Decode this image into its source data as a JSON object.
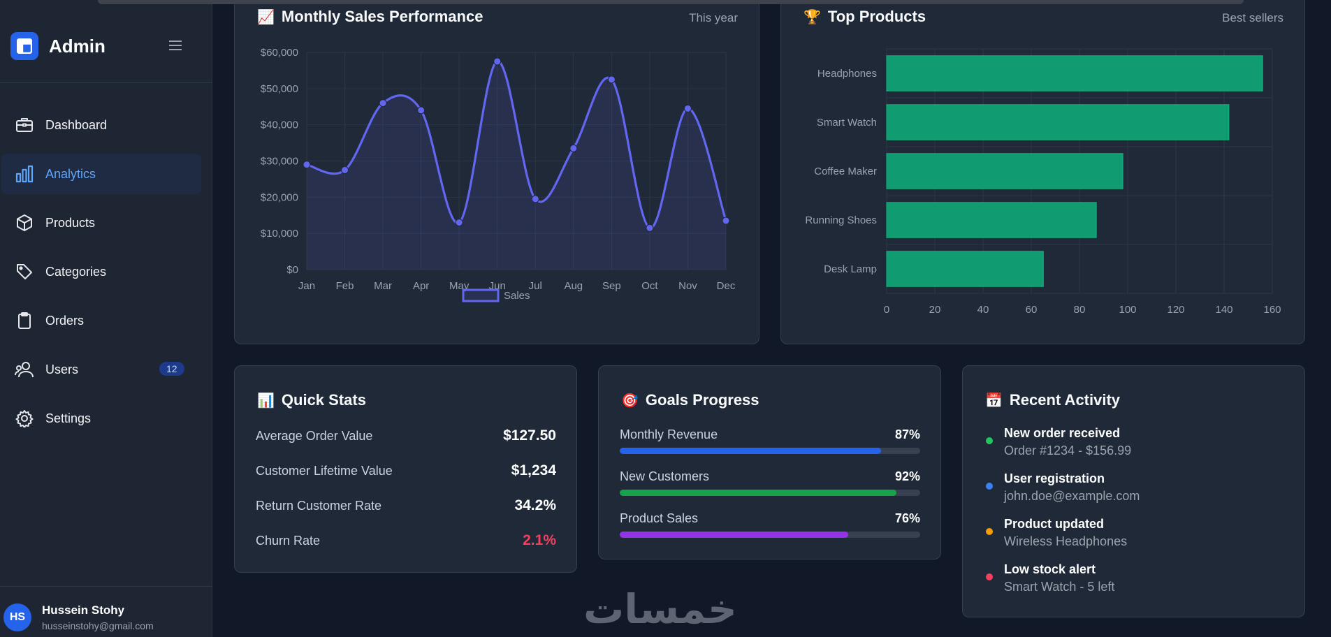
{
  "sidebar": {
    "brand": "Admin",
    "items": [
      {
        "label": "Dashboard",
        "icon": "briefcase-icon"
      },
      {
        "label": "Analytics",
        "icon": "bar-chart-icon",
        "active": true
      },
      {
        "label": "Products",
        "icon": "cube-icon"
      },
      {
        "label": "Categories",
        "icon": "tag-icon"
      },
      {
        "label": "Orders",
        "icon": "clipboard-icon"
      },
      {
        "label": "Users",
        "icon": "users-icon",
        "badge": "12"
      },
      {
        "label": "Settings",
        "icon": "gear-icon"
      }
    ],
    "user": {
      "initials": "HS",
      "name": "Hussein Stohy",
      "email": "husseinstohy@gmail.com"
    }
  },
  "sales_card": {
    "emoji": "📈",
    "title": "Monthly Sales Performance",
    "subtitle": "This year"
  },
  "products_card": {
    "emoji": "🏆",
    "title": "Top Products",
    "subtitle": "Best sellers"
  },
  "chart_data": [
    {
      "type": "line",
      "title": "Monthly Sales Performance",
      "categories": [
        "Jan",
        "Feb",
        "Mar",
        "Apr",
        "May",
        "Jun",
        "Jul",
        "Aug",
        "Sep",
        "Oct",
        "Nov",
        "Dec"
      ],
      "series": [
        {
          "name": "Sales",
          "values": [
            29000,
            27500,
            46000,
            44000,
            13000,
            57500,
            19500,
            33500,
            52500,
            11500,
            44500,
            13500
          ]
        }
      ],
      "ylim": [
        0,
        60000
      ],
      "yticks": [
        "$0",
        "$10,000",
        "$20,000",
        "$30,000",
        "$40,000",
        "$50,000",
        "$60,000"
      ],
      "legend": "bottom",
      "color": "#6366f1"
    },
    {
      "type": "bar",
      "orientation": "horizontal",
      "title": "Top Products",
      "categories": [
        "Headphones",
        "Smart Watch",
        "Coffee Maker",
        "Running Shoes",
        "Desk Lamp"
      ],
      "values": [
        156,
        142,
        98,
        87,
        65
      ],
      "xlim": [
        0,
        160
      ],
      "xticks": [
        "0",
        "20",
        "40",
        "60",
        "80",
        "100",
        "120",
        "140",
        "160"
      ],
      "color": "#10b981"
    }
  ],
  "quick_stats": {
    "emoji": "📊",
    "title": "Quick Stats",
    "rows": [
      {
        "label": "Average Order Value",
        "value": "$127.50"
      },
      {
        "label": "Customer Lifetime Value",
        "value": "$1,234"
      },
      {
        "label": "Return Customer Rate",
        "value": "34.2%"
      },
      {
        "label": "Churn Rate",
        "value": "2.1%"
      }
    ]
  },
  "goals": {
    "emoji": "🎯",
    "title": "Goals Progress",
    "items": [
      {
        "label": "Monthly Revenue",
        "pct_text": "87%",
        "pct": 87,
        "color": "#2563eb"
      },
      {
        "label": "New Customers",
        "pct_text": "92%",
        "pct": 92,
        "color": "#16a34a"
      },
      {
        "label": "Product Sales",
        "pct_text": "76%",
        "pct": 76,
        "color": "#9333ea"
      }
    ]
  },
  "activity": {
    "emoji": "📅",
    "title": "Recent Activity",
    "items": [
      {
        "title": "New order received",
        "desc": "Order #1234 - $156.99",
        "color": "#22c55e"
      },
      {
        "title": "User registration",
        "desc": "john.doe@example.com",
        "color": "#3b82f6"
      },
      {
        "title": "Product updated",
        "desc": "Wireless Headphones",
        "color": "#f59e0b"
      },
      {
        "title": "Low stock alert",
        "desc": "Smart Watch - 5 left",
        "color": "#f43f5e"
      }
    ]
  },
  "watermark": "خمسات"
}
